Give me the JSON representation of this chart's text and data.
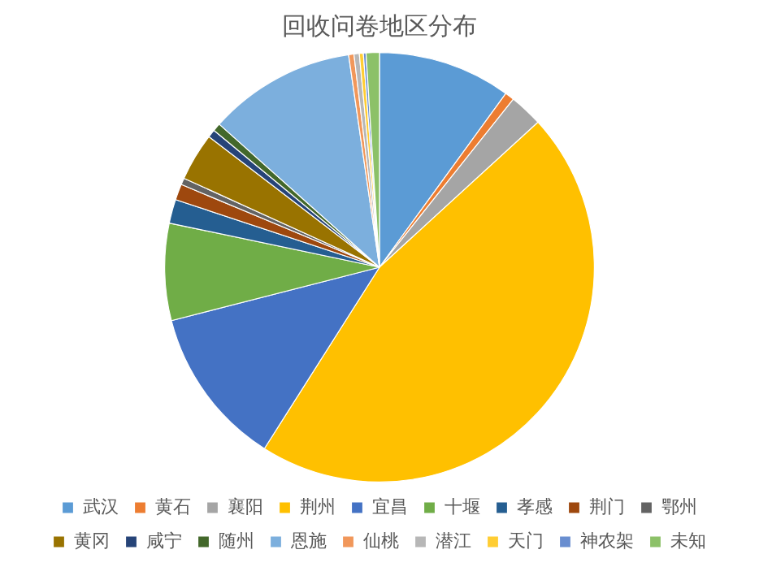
{
  "chart_data": {
    "type": "pie",
    "title": "回收问卷地区分布",
    "categories": [
      "武汉",
      "黄石",
      "襄阳",
      "荆州",
      "宜昌",
      "十堰",
      "孝感",
      "荆门",
      "鄂州",
      "黄冈",
      "咸宁",
      "随州",
      "恩施",
      "仙桃",
      "潜江",
      "天门",
      "神农架",
      "未知"
    ],
    "values": [
      10,
      0.7,
      2.5,
      45.8,
      12,
      7.3,
      1.8,
      1.2,
      0.5,
      3.6,
      0.6,
      0.6,
      11.1,
      0.4,
      0.4,
      0.3,
      0.2,
      1
    ],
    "colors": [
      "#5b9bd5",
      "#ed7d31",
      "#a5a5a5",
      "#ffc000",
      "#4472c4",
      "#70ad47",
      "#255e91",
      "#9e480e",
      "#636363",
      "#997300",
      "#264478",
      "#43682b",
      "#7cafdd",
      "#f1975a",
      "#b7b7b7",
      "#ffcd33",
      "#698ed0",
      "#8cc168"
    ],
    "legend": "bottom"
  }
}
